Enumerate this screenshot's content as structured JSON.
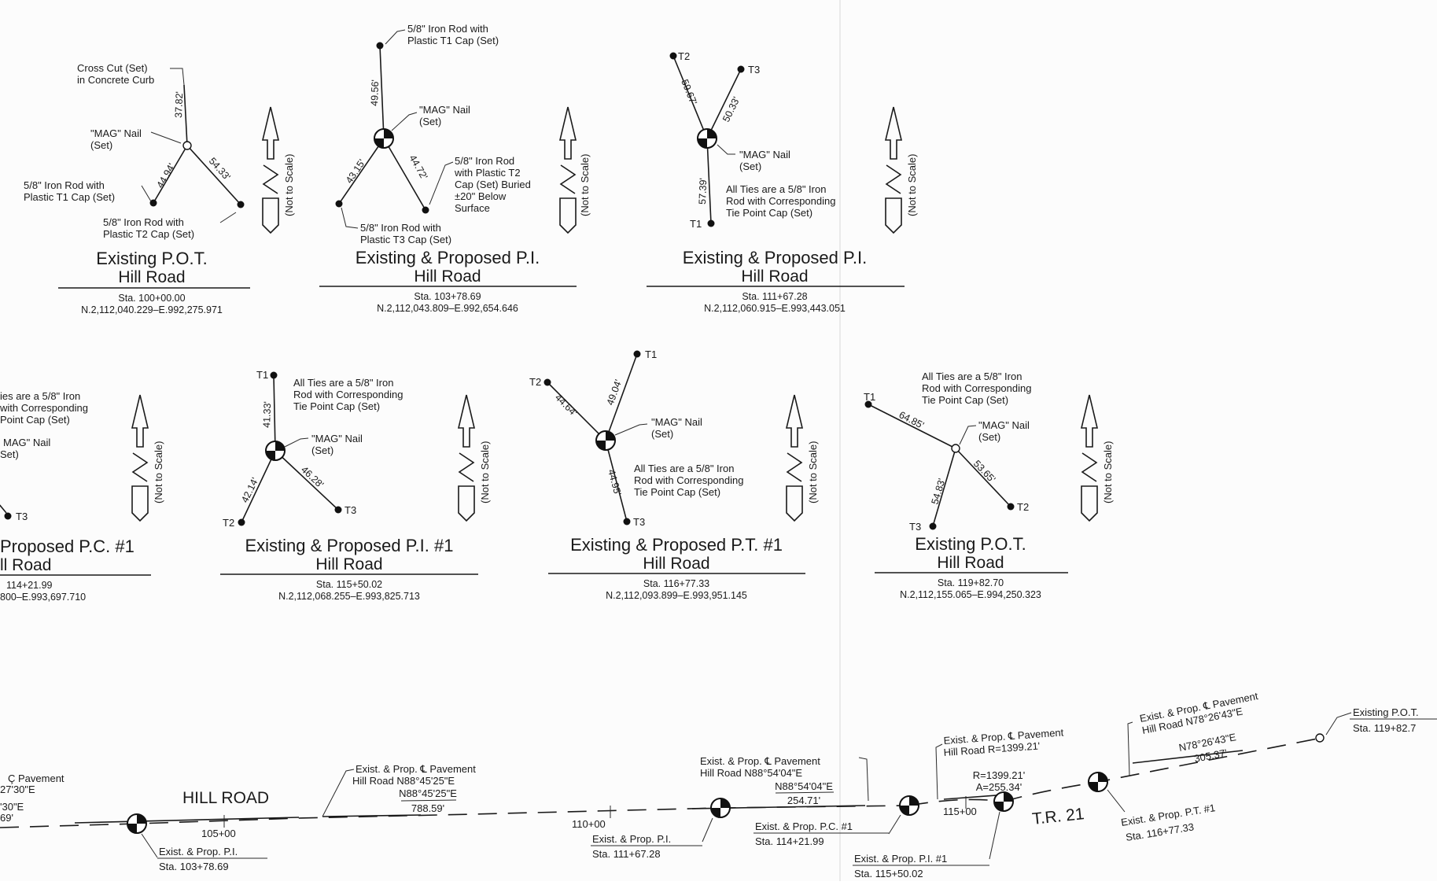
{
  "details": {
    "pot1": {
      "title": "Existing P.O.T.",
      "road": "Hill Road",
      "sta": "Sta. 100+00.00",
      "coords": "N.2,112,040.229–E.992,275.971",
      "nail": [
        "\"MAG\" Nail",
        "(Set)"
      ],
      "cross_cut": [
        "Cross Cut (Set)",
        "in Concrete Curb"
      ],
      "t1": [
        "5/8\" Iron Rod with",
        "Plastic T1 Cap (Set)"
      ],
      "t2": [
        "5/8\" Iron Rod with",
        "Plastic T2 Cap (Set)"
      ],
      "d_up": "37.82'",
      "d_left": "44.94'",
      "d_right": "54.33'"
    },
    "pi1": {
      "title": "Existing & Proposed P.I.",
      "road": "Hill Road",
      "sta": "Sta. 103+78.69",
      "coords": "N.2,112,043.809–E.992,654.646",
      "nail": [
        "\"MAG\" Nail",
        "(Set)"
      ],
      "t1": [
        "5/8\" Iron Rod with",
        "Plastic T1 Cap (Set)"
      ],
      "t2": [
        "5/8\" Iron Rod",
        "with Plastic T2",
        "Cap (Set) Buried",
        "±20\" Below",
        "Surface"
      ],
      "t3": [
        "5/8\" Iron Rod with",
        "Plastic T3 Cap (Set)"
      ],
      "d_up": "49.56'",
      "d_left": "43.15'",
      "d_right": "44.72'"
    },
    "pi2": {
      "title": "Existing & Proposed P.I.",
      "road": "Hill Road",
      "sta": "Sta. 111+67.28",
      "coords": "N.2,112,060.915–E.993,443.051",
      "nail": [
        "\"MAG\" Nail",
        "(Set)"
      ],
      "note": [
        "All Ties are a 5/8\" Iron",
        "Rod with Corresponding",
        "Tie Point Cap (Set)"
      ],
      "t1": "T1",
      "t2": "T2",
      "t3": "T3",
      "d_t2": "59.67'",
      "d_t3": "50.33'",
      "d_t1": "57.39'"
    },
    "pc1": {
      "title": "Proposed P.C. #1",
      "road": "ll Road",
      "sta": "114+21.99",
      "coords": "800–E.993,697.710",
      "note": [
        "ies are a 5/8\" Iron",
        "with Corresponding",
        "Point Cap (Set)"
      ],
      "nail": [
        "MAG\" Nail",
        "Set)"
      ],
      "t3": "T3"
    },
    "pi3": {
      "title": "Existing & Proposed P.I. #1",
      "road": "Hill Road",
      "sta": "Sta. 115+50.02",
      "coords": "N.2,112,068.255–E.993,825.713",
      "nail": [
        "\"MAG\" Nail",
        "(Set)"
      ],
      "note": [
        "All Ties are a 5/8\" Iron",
        "Rod with Corresponding",
        "Tie Point Cap (Set)"
      ],
      "t1": "T1",
      "t2": "T2",
      "t3": "T3",
      "d_t1": "41.33'",
      "d_t2": "42.14'",
      "d_t3": "46.28'"
    },
    "pt1": {
      "title": "Existing & Proposed P.T. #1",
      "road": "Hill Road",
      "sta": "Sta. 116+77.33",
      "coords": "N.2,112,093.899–E.993,951.145",
      "nail": [
        "\"MAG\" Nail",
        "(Set)"
      ],
      "note": [
        "All Ties are a 5/8\" Iron",
        "Rod with Corresponding",
        "Tie Point Cap (Set)"
      ],
      "t1": "T1",
      "t2": "T2",
      "t3": "T3",
      "d_t1": "49.04'",
      "d_t2": "44.64'",
      "d_t3": "44.95'"
    },
    "pot2": {
      "title": "Existing P.O.T.",
      "road": "Hill Road",
      "sta": "Sta. 119+82.70",
      "coords": "N.2,112,155.065–E.994,250.323",
      "nail": [
        "\"MAG\" Nail",
        "(Set)"
      ],
      "note": [
        "All Ties are a 5/8\" Iron",
        "Rod with Corresponding",
        "Tie Point Cap (Set)"
      ],
      "t1": "T1",
      "t2": "T2",
      "t3": "T3",
      "d_t1": "64.85'",
      "d_t2": "53.65'",
      "d_t3": "54.83'"
    }
  },
  "not_to_scale": "(Not to Scale)",
  "plan": {
    "road_name": "HILL ROAD",
    "tr_name": "T.R. 21",
    "left_partial": [
      "Ç Pavement",
      "27'30\"E",
      "'30\"E",
      "69'"
    ],
    "bearing1": [
      "Exist. & Prop. ℄ Pavement",
      "Hill Road N88°45'25\"E"
    ],
    "bearing1_dim": [
      "N88°45'25\"E",
      "788.59'"
    ],
    "bearing2": [
      "Exist. & Prop. ℄ Pavement",
      "Hill Road N88°54'04\"E"
    ],
    "bearing2_dim": [
      "N88°54'04\"E",
      "254.71'"
    ],
    "curve": [
      "Exist. & Prop. ℄ Pavement",
      "Hill Road R=1399.21'"
    ],
    "curve_dim": [
      "R=1399.21'",
      "A=255.34'"
    ],
    "bearing3": [
      "Exist. & Prop. ℄ Pavement",
      "Hill Road N78°26'43\"E"
    ],
    "bearing3_dim": [
      "N78°26'43\"E",
      "305.37'"
    ],
    "pot_end": [
      "Existing P.O.T.",
      "Sta. 119+82.7"
    ],
    "sta_105": "105+00",
    "sta_110": "110+00",
    "sta_115": "115+00",
    "pi_a": [
      "Exist. & Prop. P.I.",
      "Sta. 103+78.69"
    ],
    "pi_b": [
      "Exist. & Prop. P.I.",
      "Sta. 111+67.28"
    ],
    "pc": [
      "Exist. & Prop. P.C. #1",
      "Sta. 114+21.99"
    ],
    "pi_c": [
      "Exist. & Prop. P.I. #1",
      "Sta. 115+50.02"
    ],
    "pt": [
      "Exist. & Prop. P.T. #1",
      "Sta. 116+77.33"
    ]
  }
}
